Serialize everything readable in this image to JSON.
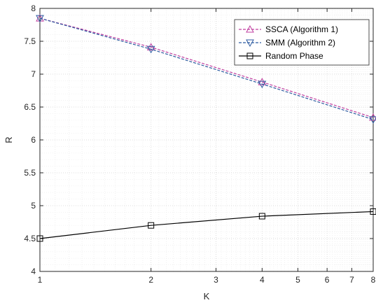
{
  "chart_data": {
    "type": "line",
    "x": [
      1,
      2,
      4,
      8
    ],
    "xscale": "log2",
    "xlim": [
      1,
      8
    ],
    "ylim": [
      4,
      8
    ],
    "xticks": [
      1,
      2,
      3,
      4,
      5,
      6,
      7,
      8
    ],
    "xtick_labels": [
      "1",
      "2",
      "3",
      "4",
      "5",
      "6",
      "7",
      "8"
    ],
    "yticks": [
      4,
      4.5,
      5,
      5.5,
      6,
      6.5,
      7,
      7.5,
      8
    ],
    "ytick_labels": [
      "4",
      "4.5",
      "5",
      "5.5",
      "6",
      "6.5",
      "7",
      "7.5",
      "8"
    ],
    "xlabel": "K",
    "ylabel": "R",
    "grid": true,
    "legend_position": "top-right",
    "series": [
      {
        "name": "SSCA (Algorithm 1)",
        "values": [
          7.85,
          7.41,
          6.88,
          6.34
        ],
        "color": "#c03fa0",
        "line_style": "dashed",
        "marker": "triangle-up"
      },
      {
        "name": "SMM (Algorithm 2)",
        "values": [
          7.85,
          7.38,
          6.85,
          6.31
        ],
        "color": "#2c5aa0",
        "line_style": "dashed",
        "marker": "triangle-down"
      },
      {
        "name": "Random Phase",
        "values": [
          4.5,
          4.7,
          4.84,
          4.91
        ],
        "color": "#000000",
        "line_style": "solid",
        "marker": "square"
      }
    ]
  }
}
